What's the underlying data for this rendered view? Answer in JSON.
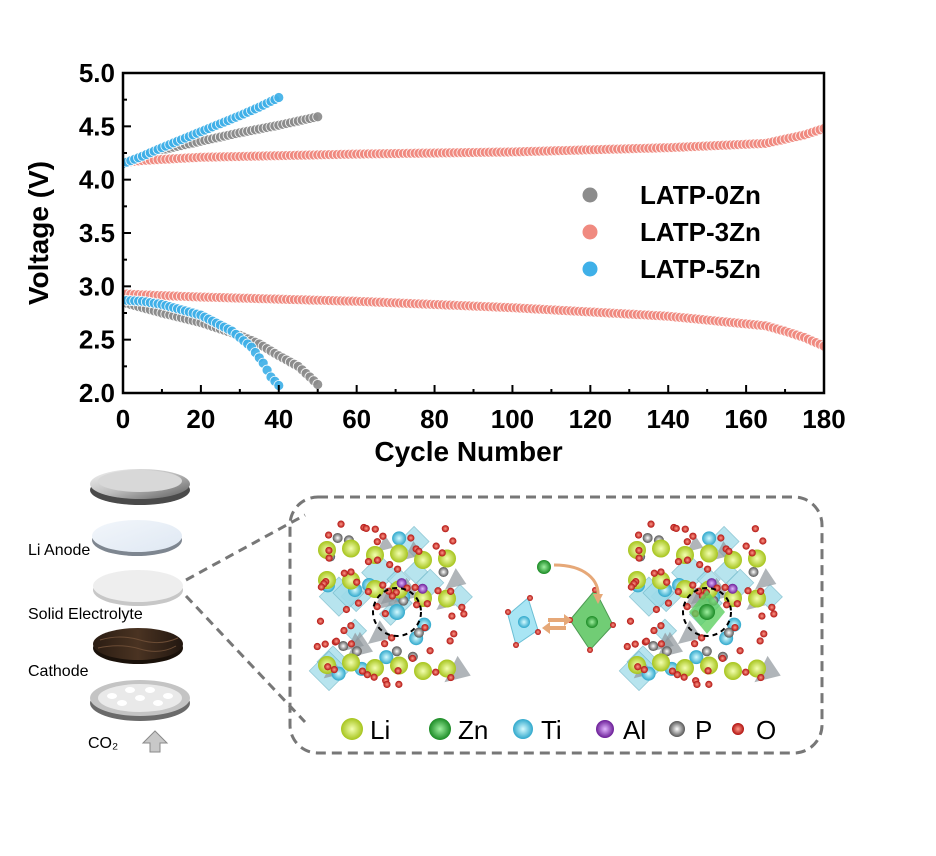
{
  "chart_data": {
    "type": "scatter",
    "xlabel": "Cycle Number",
    "ylabel": "Voltage (V)",
    "xlim": [
      0,
      180
    ],
    "ylim": [
      2.0,
      5.0
    ],
    "xticks": [
      0,
      20,
      40,
      60,
      80,
      100,
      120,
      140,
      160,
      180
    ],
    "yticks": [
      2.0,
      2.5,
      3.0,
      3.5,
      4.0,
      4.5,
      5.0
    ],
    "xtick_labels": [
      "0",
      "20",
      "40",
      "60",
      "80",
      "100",
      "120",
      "140",
      "160",
      "180"
    ],
    "ytick_labels": [
      "2.0",
      "2.5",
      "3.0",
      "3.5",
      "4.0",
      "4.5",
      "5.0"
    ],
    "legend_position": "right",
    "series": [
      {
        "name": "LATP-0Zn",
        "color": "#8c8c8c",
        "charge": {
          "x": [
            0,
            5,
            10,
            20,
            30,
            40,
            45,
            50
          ],
          "y": [
            4.15,
            4.22,
            4.28,
            4.36,
            4.44,
            4.51,
            4.55,
            4.59
          ]
        },
        "discharge": {
          "x": [
            0,
            5,
            10,
            20,
            30,
            35,
            40,
            45,
            48,
            50
          ],
          "y": [
            2.85,
            2.8,
            2.75,
            2.66,
            2.54,
            2.46,
            2.35,
            2.25,
            2.15,
            2.08
          ]
        }
      },
      {
        "name": "LATP-3Zn",
        "color": "#f08a80",
        "charge": {
          "x": [
            0,
            5,
            20,
            60,
            100,
            140,
            165,
            170,
            175,
            180
          ],
          "y": [
            4.16,
            4.18,
            4.21,
            4.24,
            4.26,
            4.3,
            4.34,
            4.38,
            4.42,
            4.48
          ]
        },
        "discharge": {
          "x": [
            0,
            5,
            20,
            60,
            100,
            140,
            165,
            170,
            175,
            180
          ],
          "y": [
            2.93,
            2.92,
            2.9,
            2.86,
            2.8,
            2.72,
            2.63,
            2.58,
            2.52,
            2.44
          ]
        }
      },
      {
        "name": "LATP-5Zn",
        "color": "#3fb0e8",
        "charge": {
          "x": [
            0,
            5,
            10,
            20,
            30,
            35,
            40
          ],
          "y": [
            4.15,
            4.22,
            4.3,
            4.45,
            4.6,
            4.68,
            4.77
          ]
        },
        "discharge": {
          "x": [
            0,
            5,
            10,
            20,
            28,
            33,
            36,
            38,
            40
          ],
          "y": [
            2.87,
            2.86,
            2.83,
            2.73,
            2.58,
            2.43,
            2.28,
            2.15,
            2.07
          ]
        }
      }
    ]
  },
  "schematic": {
    "layer_labels": {
      "li_anode": "Li Anode",
      "solid_electrolyte": "Solid Electrolyte",
      "cathode": "Cathode",
      "co2": "CO₂"
    },
    "atom_legend": [
      {
        "symbol": "Li",
        "color": "#c6e532"
      },
      {
        "symbol": "Zn",
        "color": "#2fb53c"
      },
      {
        "symbol": "Ti",
        "color": "#5dd3ee"
      },
      {
        "symbol": "Al",
        "color": "#9a3cc4"
      },
      {
        "symbol": "P",
        "color": "#8a8a8a"
      },
      {
        "symbol": "O",
        "color": "#e0201e"
      }
    ]
  }
}
